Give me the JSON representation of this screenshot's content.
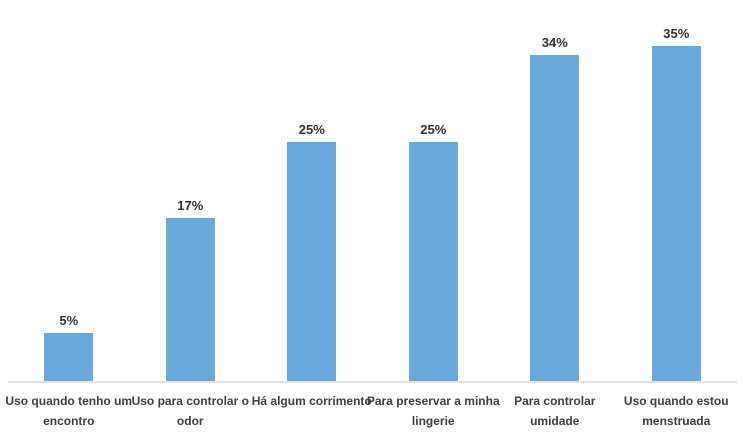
{
  "chart_data": {
    "type": "bar",
    "categories": [
      "Uso quando tenho um encontro",
      "Uso para controlar o odor",
      "Há algum corrimento",
      "Para preservar a minha lingerie",
      "Para controlar umidade",
      "Uso quando estou menstruada"
    ],
    "values": [
      5,
      17,
      25,
      25,
      34,
      35
    ],
    "value_labels": [
      "5%",
      "17%",
      "25%",
      "25%",
      "34%",
      "35%"
    ],
    "title": "",
    "xlabel": "",
    "ylabel": "",
    "ylim": [
      0,
      40
    ],
    "grid": false,
    "legend": false,
    "orientation": "vertical",
    "bar_color": "#69a9db",
    "axis_line_color": "#e4e4e4",
    "category_label_color": "#404040",
    "value_label_color": "#333333"
  }
}
